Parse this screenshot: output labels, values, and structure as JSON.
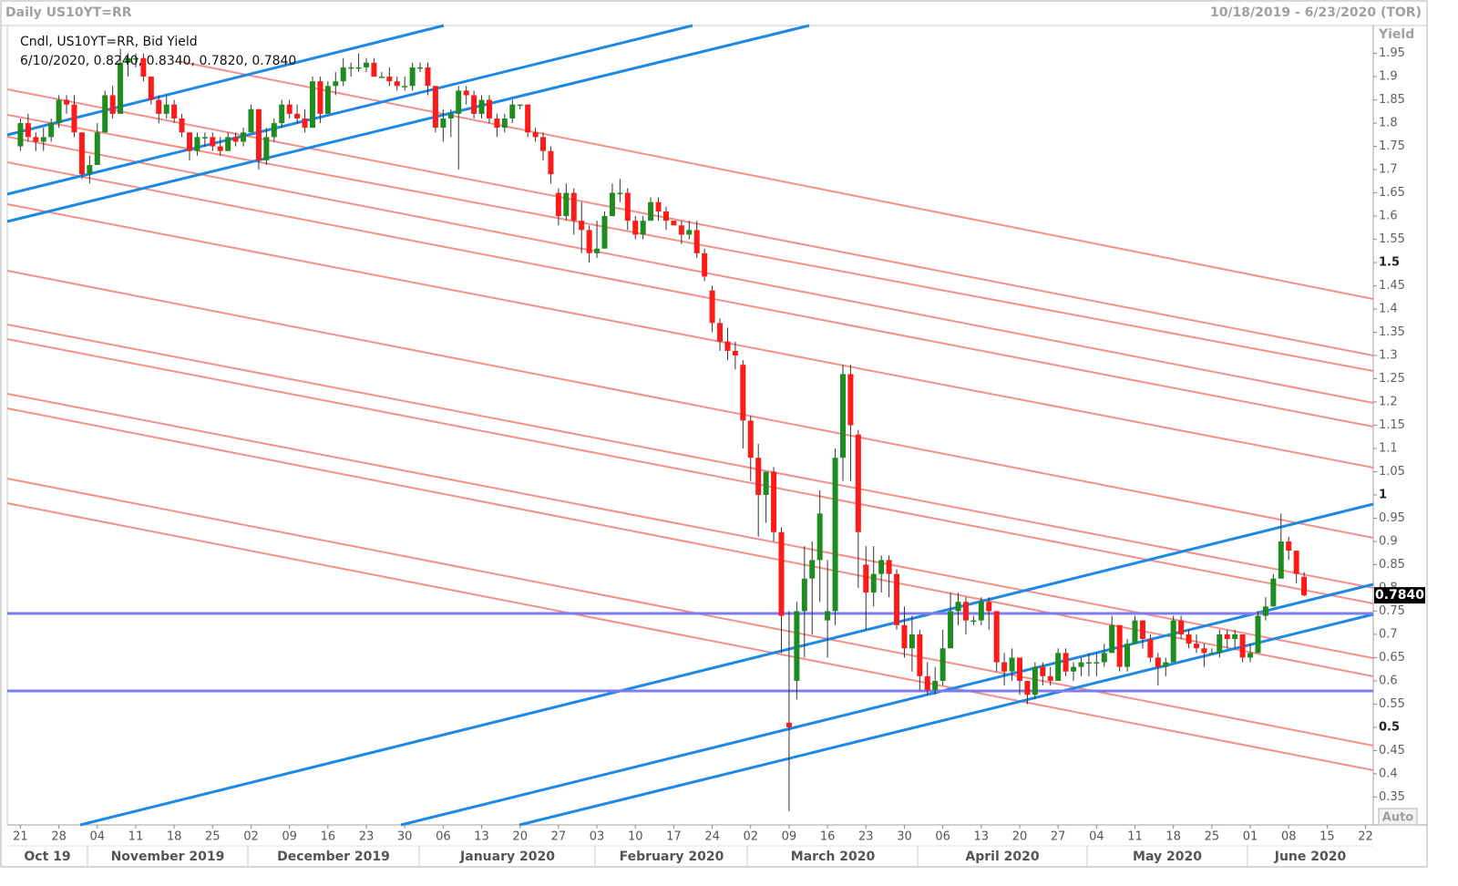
{
  "chart_data": {
    "type": "candlestick",
    "title": "Daily US10YT=RR",
    "date_range": "10/18/2019 - 6/23/2020 (TOR)",
    "legend_title": "Cndl, US10YT=RR, Bid Yield",
    "legend_values": "6/10/2020, 0.8240, 0.8340, 0.7820, 0.7840",
    "y_label": "Yield",
    "price_badge": "0.7840",
    "auto_button": "Auto",
    "up_color": "#1e8c1e",
    "down_color": "#ff1a1a",
    "xlim": [
      "2019-10-18",
      "2020-06-23"
    ],
    "ylim": [
      0.29,
      2.01
    ],
    "yticks": [
      0.35,
      0.4,
      0.45,
      0.5,
      0.55,
      0.6,
      0.65,
      0.7,
      0.75,
      0.8,
      0.85,
      0.9,
      0.95,
      1,
      1.05,
      1.1,
      1.15,
      1.2,
      1.25,
      1.3,
      1.35,
      1.4,
      1.45,
      1.5,
      1.55,
      1.6,
      1.65,
      1.7,
      1.75,
      1.8,
      1.85,
      1.9,
      1.95
    ],
    "xticks": [
      {
        "value": "2019-10-21",
        "label": "21"
      },
      {
        "value": "2019-10-28",
        "label": "28"
      },
      {
        "value": "2019-11-04",
        "label": "04"
      },
      {
        "value": "2019-11-11",
        "label": "11"
      },
      {
        "value": "2019-11-18",
        "label": "18"
      },
      {
        "value": "2019-11-25",
        "label": "25"
      },
      {
        "value": "2019-12-02",
        "label": "02"
      },
      {
        "value": "2019-12-09",
        "label": "09"
      },
      {
        "value": "2019-12-16",
        "label": "16"
      },
      {
        "value": "2019-12-23",
        "label": "23"
      },
      {
        "value": "2019-12-30",
        "label": "30"
      },
      {
        "value": "2020-01-06",
        "label": "06"
      },
      {
        "value": "2020-01-13",
        "label": "13"
      },
      {
        "value": "2020-01-20",
        "label": "20"
      },
      {
        "value": "2020-01-27",
        "label": "27"
      },
      {
        "value": "2020-02-03",
        "label": "03"
      },
      {
        "value": "2020-02-10",
        "label": "10"
      },
      {
        "value": "2020-02-17",
        "label": "17"
      },
      {
        "value": "2020-02-24",
        "label": "24"
      },
      {
        "value": "2020-03-02",
        "label": "02"
      },
      {
        "value": "2020-03-09",
        "label": "09"
      },
      {
        "value": "2020-03-16",
        "label": "16"
      },
      {
        "value": "2020-03-23",
        "label": "23"
      },
      {
        "value": "2020-03-30",
        "label": "30"
      },
      {
        "value": "2020-04-06",
        "label": "06"
      },
      {
        "value": "2020-04-13",
        "label": "13"
      },
      {
        "value": "2020-04-20",
        "label": "20"
      },
      {
        "value": "2020-04-27",
        "label": "27"
      },
      {
        "value": "2020-05-04",
        "label": "04"
      },
      {
        "value": "2020-05-11",
        "label": "11"
      },
      {
        "value": "2020-05-18",
        "label": "18"
      },
      {
        "value": "2020-05-25",
        "label": "25"
      },
      {
        "value": "2020-06-01",
        "label": "01"
      },
      {
        "value": "2020-06-08",
        "label": "08"
      },
      {
        "value": "2020-06-15",
        "label": "15"
      },
      {
        "value": "2020-06-22",
        "label": "22"
      }
    ],
    "month_labels": [
      "Oct 19",
      "November 2019",
      "December 2019",
      "January 2020",
      "February 2020",
      "March 2020",
      "April 2020",
      "May 2020",
      "June 2020"
    ],
    "x": [
      "2019-10-21",
      "2019-10-22",
      "2019-10-23",
      "2019-10-24",
      "2019-10-25",
      "2019-10-28",
      "2019-10-29",
      "2019-10-30",
      "2019-10-31",
      "2019-11-01",
      "2019-11-04",
      "2019-11-05",
      "2019-11-06",
      "2019-11-07",
      "2019-11-08",
      "2019-11-11",
      "2019-11-12",
      "2019-11-13",
      "2019-11-14",
      "2019-11-15",
      "2019-11-18",
      "2019-11-19",
      "2019-11-20",
      "2019-11-21",
      "2019-11-22",
      "2019-11-25",
      "2019-11-26",
      "2019-11-27",
      "2019-11-28",
      "2019-11-29",
      "2019-12-02",
      "2019-12-03",
      "2019-12-04",
      "2019-12-05",
      "2019-12-06",
      "2019-12-09",
      "2019-12-10",
      "2019-12-11",
      "2019-12-12",
      "2019-12-13",
      "2019-12-16",
      "2019-12-17",
      "2019-12-18",
      "2019-12-19",
      "2019-12-20",
      "2019-12-23",
      "2019-12-24",
      "2019-12-25",
      "2019-12-26",
      "2019-12-27",
      "2019-12-30",
      "2019-12-31",
      "2020-01-01",
      "2020-01-02",
      "2020-01-03",
      "2020-01-06",
      "2020-01-07",
      "2020-01-08",
      "2020-01-09",
      "2020-01-10",
      "2020-01-13",
      "2020-01-14",
      "2020-01-15",
      "2020-01-16",
      "2020-01-17",
      "2020-01-20",
      "2020-01-21",
      "2020-01-22",
      "2020-01-23",
      "2020-01-24",
      "2020-01-27",
      "2020-01-28",
      "2020-01-29",
      "2020-01-30",
      "2020-01-31",
      "2020-02-03",
      "2020-02-04",
      "2020-02-05",
      "2020-02-06",
      "2020-02-07",
      "2020-02-10",
      "2020-02-11",
      "2020-02-12",
      "2020-02-13",
      "2020-02-14",
      "2020-02-17",
      "2020-02-18",
      "2020-02-19",
      "2020-02-20",
      "2020-02-21",
      "2020-02-24",
      "2020-02-25",
      "2020-02-26",
      "2020-02-27",
      "2020-02-28",
      "2020-03-02",
      "2020-03-03",
      "2020-03-04",
      "2020-03-05",
      "2020-03-06",
      "2020-03-09",
      "2020-03-10",
      "2020-03-11",
      "2020-03-12",
      "2020-03-13",
      "2020-03-16",
      "2020-03-17",
      "2020-03-18",
      "2020-03-19",
      "2020-03-20",
      "2020-03-23",
      "2020-03-24",
      "2020-03-25",
      "2020-03-26",
      "2020-03-27",
      "2020-03-30",
      "2020-03-31",
      "2020-04-01",
      "2020-04-02",
      "2020-04-03",
      "2020-04-06",
      "2020-04-07",
      "2020-04-08",
      "2020-04-09",
      "2020-04-10",
      "2020-04-13",
      "2020-04-14",
      "2020-04-15",
      "2020-04-16",
      "2020-04-17",
      "2020-04-20",
      "2020-04-21",
      "2020-04-22",
      "2020-04-23",
      "2020-04-24",
      "2020-04-27",
      "2020-04-28",
      "2020-04-29",
      "2020-04-30",
      "2020-05-01",
      "2020-05-04",
      "2020-05-05",
      "2020-05-06",
      "2020-05-07",
      "2020-05-08",
      "2020-05-11",
      "2020-05-12",
      "2020-05-13",
      "2020-05-14",
      "2020-05-15",
      "2020-05-18",
      "2020-05-19",
      "2020-05-20",
      "2020-05-21",
      "2020-05-22",
      "2020-05-25",
      "2020-05-26",
      "2020-05-27",
      "2020-05-28",
      "2020-05-29",
      "2020-06-01",
      "2020-06-02",
      "2020-06-03",
      "2020-06-04",
      "2020-06-05",
      "2020-06-08",
      "2020-06-09",
      "2020-06-10"
    ],
    "open": [
      1.75,
      1.8,
      1.77,
      1.76,
      1.77,
      1.8,
      1.85,
      1.84,
      1.78,
      1.69,
      1.71,
      1.78,
      1.86,
      1.82,
      1.93,
      1.94,
      1.94,
      1.9,
      1.85,
      1.82,
      1.84,
      1.81,
      1.78,
      1.74,
      1.77,
      1.77,
      1.75,
      1.74,
      1.77,
      1.76,
      1.78,
      1.83,
      1.72,
      1.77,
      1.8,
      1.84,
      1.82,
      1.81,
      1.79,
      1.89,
      1.82,
      1.88,
      1.89,
      1.92,
      1.92,
      1.92,
      1.93,
      1.9,
      1.9,
      1.89,
      1.88,
      1.88,
      1.92,
      1.92,
      1.88,
      1.79,
      1.81,
      1.82,
      1.87,
      1.86,
      1.82,
      1.85,
      1.81,
      1.79,
      1.81,
      1.84,
      1.84,
      1.78,
      1.77,
      1.74,
      1.65,
      1.6,
      1.65,
      1.59,
      1.57,
      1.52,
      1.53,
      1.6,
      1.65,
      1.65,
      1.59,
      1.56,
      1.59,
      1.63,
      1.61,
      1.59,
      1.58,
      1.56,
      1.57,
      1.52,
      1.44,
      1.37,
      1.33,
      1.31,
      1.28,
      1.16,
      1.08,
      1.0,
      1.05,
      0.92,
      0.51,
      0.6,
      0.75,
      0.82,
      0.86,
      0.73,
      0.75,
      1.08,
      1.26,
      1.13,
      0.85,
      0.79,
      0.83,
      0.86,
      0.83,
      0.72,
      0.67,
      0.7,
      0.61,
      0.58,
      0.6,
      0.67,
      0.75,
      0.77,
      0.73,
      0.73,
      0.77,
      0.75,
      0.64,
      0.62,
      0.65,
      0.6,
      0.57,
      0.63,
      0.61,
      0.6,
      0.66,
      0.62,
      0.63,
      0.64,
      0.64,
      0.64,
      0.66,
      0.72,
      0.63,
      0.68,
      0.73,
      0.69,
      0.65,
      0.63,
      0.64,
      0.73,
      0.7,
      0.68,
      0.67,
      0.66,
      0.66,
      0.7,
      0.69,
      0.7,
      0.65,
      0.66,
      0.74,
      0.76,
      0.82,
      0.9,
      0.88,
      0.824
    ],
    "high": [
      1.81,
      1.82,
      1.78,
      1.79,
      1.81,
      1.86,
      1.86,
      1.86,
      1.78,
      1.73,
      1.8,
      1.87,
      1.88,
      1.96,
      1.95,
      1.95,
      1.95,
      1.9,
      1.86,
      1.86,
      1.85,
      1.82,
      1.78,
      1.78,
      1.78,
      1.78,
      1.77,
      1.78,
      1.78,
      1.79,
      1.84,
      1.83,
      1.79,
      1.81,
      1.85,
      1.85,
      1.84,
      1.83,
      1.9,
      1.9,
      1.89,
      1.91,
      1.94,
      1.93,
      1.95,
      1.94,
      1.94,
      1.91,
      1.92,
      1.9,
      1.9,
      1.93,
      1.93,
      1.93,
      1.88,
      1.83,
      1.83,
      1.88,
      1.88,
      1.87,
      1.86,
      1.86,
      1.82,
      1.82,
      1.85,
      1.84,
      1.84,
      1.79,
      1.78,
      1.75,
      1.66,
      1.67,
      1.66,
      1.63,
      1.58,
      1.59,
      1.61,
      1.67,
      1.68,
      1.66,
      1.6,
      1.6,
      1.64,
      1.64,
      1.62,
      1.59,
      1.59,
      1.59,
      1.59,
      1.53,
      1.45,
      1.38,
      1.36,
      1.33,
      1.29,
      1.17,
      1.11,
      1.05,
      1.06,
      0.93,
      0.75,
      0.77,
      0.89,
      0.9,
      1.01,
      0.86,
      1.1,
      1.28,
      1.28,
      1.14,
      0.89,
      0.89,
      0.87,
      0.87,
      0.84,
      0.76,
      0.74,
      0.71,
      0.64,
      0.63,
      0.71,
      0.79,
      0.79,
      0.78,
      0.74,
      0.78,
      0.78,
      0.75,
      0.66,
      0.67,
      0.65,
      0.6,
      0.64,
      0.64,
      0.63,
      0.67,
      0.67,
      0.64,
      0.65,
      0.66,
      0.66,
      0.68,
      0.74,
      0.72,
      0.69,
      0.74,
      0.73,
      0.7,
      0.66,
      0.65,
      0.74,
      0.74,
      0.71,
      0.7,
      0.68,
      0.67,
      0.71,
      0.71,
      0.71,
      0.7,
      0.68,
      0.75,
      0.78,
      0.83,
      0.96,
      0.91,
      0.88,
      0.834
    ],
    "low": [
      1.74,
      1.76,
      1.74,
      1.74,
      1.76,
      1.79,
      1.82,
      1.77,
      1.68,
      1.67,
      1.71,
      1.78,
      1.81,
      1.82,
      1.9,
      1.92,
      1.89,
      1.84,
      1.8,
      1.81,
      1.8,
      1.77,
      1.72,
      1.73,
      1.75,
      1.74,
      1.73,
      1.74,
      1.75,
      1.75,
      1.78,
      1.7,
      1.71,
      1.76,
      1.79,
      1.81,
      1.8,
      1.78,
      1.79,
      1.8,
      1.82,
      1.86,
      1.88,
      1.9,
      1.91,
      1.91,
      1.9,
      1.9,
      1.88,
      1.87,
      1.87,
      1.87,
      1.91,
      1.86,
      1.78,
      1.76,
      1.77,
      1.7,
      1.84,
      1.81,
      1.81,
      1.8,
      1.77,
      1.78,
      1.8,
      1.83,
      1.77,
      1.76,
      1.72,
      1.67,
      1.58,
      1.59,
      1.56,
      1.52,
      1.5,
      1.51,
      1.53,
      1.6,
      1.63,
      1.57,
      1.55,
      1.55,
      1.59,
      1.59,
      1.57,
      1.58,
      1.54,
      1.55,
      1.51,
      1.46,
      1.35,
      1.31,
      1.29,
      1.27,
      1.1,
      1.03,
      0.91,
      0.94,
      0.9,
      0.66,
      0.32,
      0.56,
      0.65,
      0.7,
      0.77,
      0.65,
      0.72,
      1.03,
      1.03,
      0.8,
      0.71,
      0.76,
      0.79,
      0.78,
      0.71,
      0.65,
      0.62,
      0.58,
      0.57,
      0.57,
      0.59,
      0.67,
      0.72,
      0.7,
      0.72,
      0.72,
      0.71,
      0.62,
      0.59,
      0.6,
      0.57,
      0.55,
      0.56,
      0.59,
      0.59,
      0.6,
      0.61,
      0.6,
      0.61,
      0.61,
      0.61,
      0.63,
      0.66,
      0.62,
      0.62,
      0.68,
      0.67,
      0.64,
      0.59,
      0.61,
      0.64,
      0.69,
      0.67,
      0.66,
      0.63,
      0.66,
      0.65,
      0.67,
      0.67,
      0.64,
      0.64,
      0.66,
      0.73,
      0.76,
      0.82,
      0.86,
      0.81,
      0.782
    ],
    "close": [
      1.8,
      1.77,
      1.76,
      1.77,
      1.8,
      1.85,
      1.84,
      1.78,
      1.69,
      1.71,
      1.78,
      1.86,
      1.82,
      1.93,
      1.94,
      1.94,
      1.9,
      1.85,
      1.82,
      1.84,
      1.81,
      1.78,
      1.74,
      1.77,
      1.77,
      1.75,
      1.74,
      1.77,
      1.76,
      1.78,
      1.83,
      1.72,
      1.77,
      1.8,
      1.84,
      1.82,
      1.81,
      1.79,
      1.89,
      1.82,
      1.88,
      1.89,
      1.92,
      1.92,
      1.92,
      1.93,
      1.9,
      1.9,
      1.89,
      1.88,
      1.88,
      1.92,
      1.92,
      1.88,
      1.79,
      1.81,
      1.82,
      1.87,
      1.86,
      1.82,
      1.85,
      1.81,
      1.79,
      1.81,
      1.84,
      1.84,
      1.78,
      1.77,
      1.74,
      1.69,
      1.6,
      1.65,
      1.59,
      1.57,
      1.52,
      1.53,
      1.6,
      1.65,
      1.65,
      1.59,
      1.56,
      1.59,
      1.63,
      1.61,
      1.59,
      1.58,
      1.56,
      1.57,
      1.52,
      1.47,
      1.37,
      1.33,
      1.31,
      1.3,
      1.16,
      1.08,
      1.0,
      1.05,
      0.92,
      0.74,
      0.5,
      0.75,
      0.82,
      0.86,
      0.96,
      0.75,
      1.08,
      1.26,
      1.15,
      0.92,
      0.79,
      0.83,
      0.86,
      0.83,
      0.72,
      0.67,
      0.7,
      0.61,
      0.58,
      0.6,
      0.67,
      0.75,
      0.77,
      0.73,
      0.73,
      0.77,
      0.75,
      0.64,
      0.62,
      0.65,
      0.6,
      0.57,
      0.63,
      0.61,
      0.6,
      0.66,
      0.62,
      0.63,
      0.64,
      0.64,
      0.64,
      0.66,
      0.72,
      0.63,
      0.68,
      0.73,
      0.69,
      0.65,
      0.63,
      0.64,
      0.73,
      0.7,
      0.68,
      0.67,
      0.66,
      0.66,
      0.7,
      0.69,
      0.7,
      0.65,
      0.66,
      0.74,
      0.76,
      0.82,
      0.9,
      0.88,
      0.83,
      0.784
    ]
  }
}
